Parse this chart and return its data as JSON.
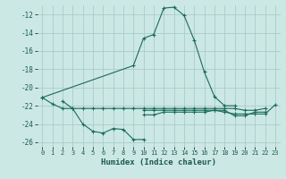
{
  "title": "",
  "xlabel": "Humidex (Indice chaleur)",
  "ylabel": "",
  "bg_color": "#cce8e4",
  "grid_color": "#aaccca",
  "line_color": "#1a6b5a",
  "xlim": [
    -0.5,
    23.5
  ],
  "ylim": [
    -26.5,
    -11.0
  ],
  "xticks": [
    0,
    1,
    2,
    3,
    4,
    5,
    6,
    7,
    8,
    9,
    10,
    11,
    12,
    13,
    14,
    15,
    16,
    17,
    18,
    19,
    20,
    21,
    22,
    23
  ],
  "yticks": [
    -26,
    -24,
    -22,
    -20,
    -18,
    -16,
    -14,
    -12
  ],
  "series": [
    [
      null,
      null,
      -21.5,
      -22.3,
      -24.0,
      -24.8,
      -25.0,
      -24.5,
      -24.6,
      -25.7,
      -25.7,
      null,
      null,
      null,
      null,
      null,
      null,
      null,
      null,
      null,
      null,
      null,
      null,
      null
    ],
    [
      -21.1,
      -21.8,
      -22.3,
      -22.3,
      -22.3,
      -22.3,
      -22.3,
      -22.3,
      -22.3,
      -22.3,
      -22.3,
      -22.3,
      -22.3,
      -22.3,
      -22.3,
      -22.3,
      -22.3,
      -22.3,
      -22.3,
      -22.3,
      -22.5,
      -22.5,
      -22.3,
      null
    ],
    [
      null,
      null,
      null,
      null,
      null,
      null,
      null,
      null,
      null,
      null,
      -22.5,
      -22.5,
      -22.5,
      -22.5,
      -22.5,
      -22.5,
      -22.5,
      -22.5,
      -22.7,
      -22.9,
      -22.9,
      -22.9,
      -22.9,
      -21.9
    ],
    [
      null,
      null,
      null,
      null,
      null,
      null,
      null,
      null,
      null,
      null,
      -23.0,
      -23.0,
      -22.7,
      -22.7,
      -22.7,
      -22.7,
      -22.7,
      -22.5,
      -22.5,
      -23.1,
      -23.1,
      -22.7,
      -22.7,
      null
    ],
    [
      -21.1,
      null,
      null,
      null,
      null,
      null,
      null,
      null,
      null,
      -17.6,
      -14.6,
      -14.2,
      -11.3,
      -11.2,
      -12.1,
      -14.8,
      -18.3,
      -21.0,
      -22.0,
      -22.0,
      null,
      null,
      null,
      null
    ]
  ]
}
